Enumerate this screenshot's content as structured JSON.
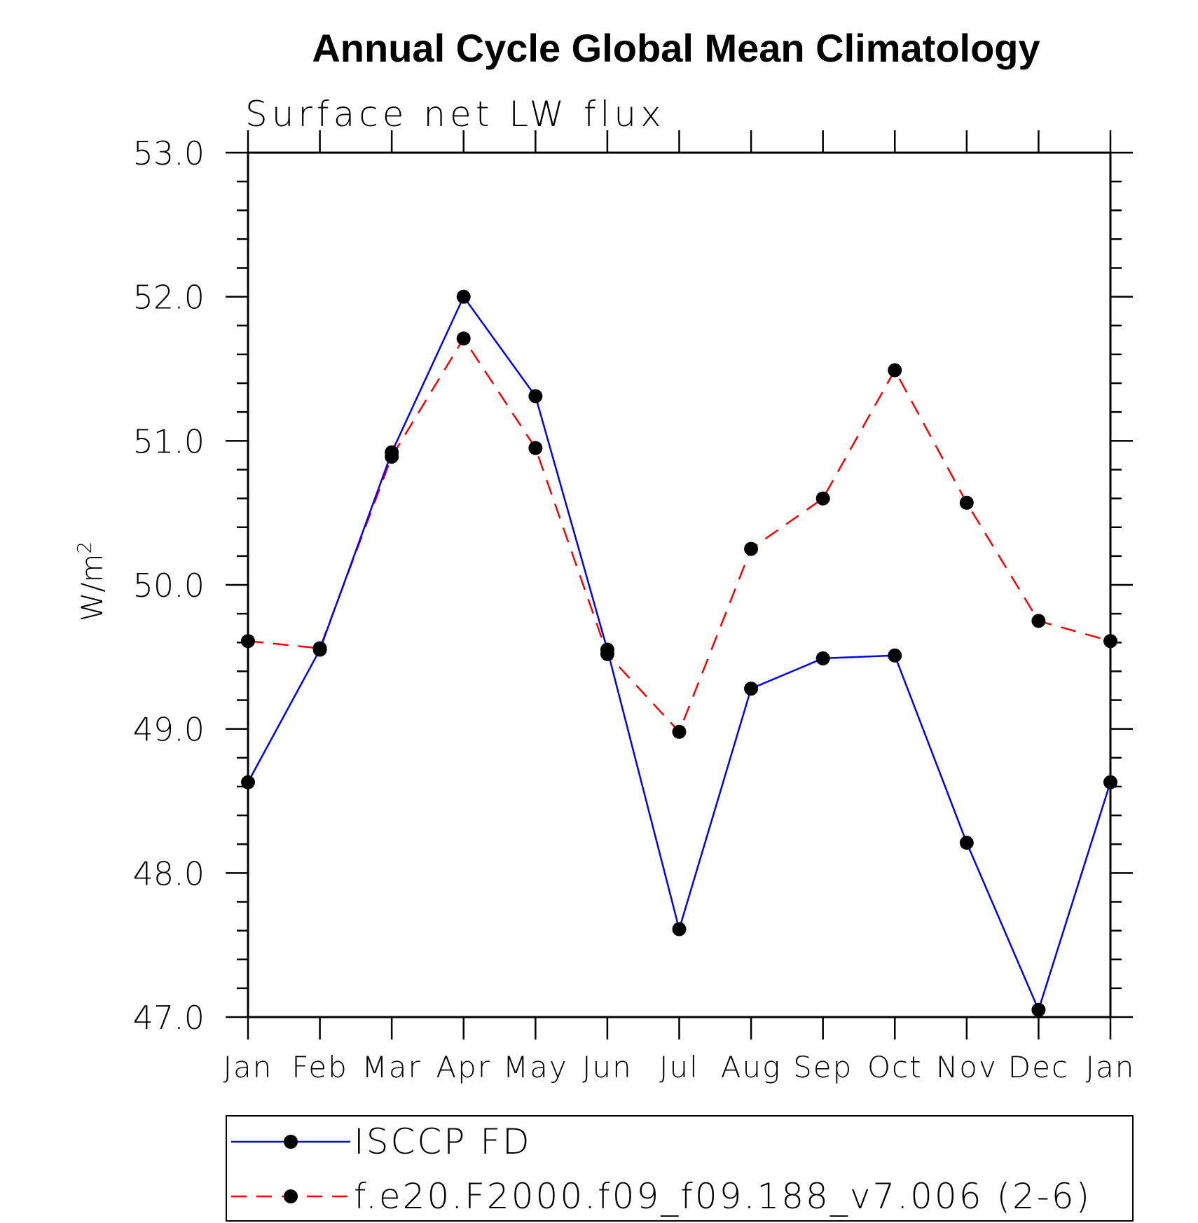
{
  "chart_data": {
    "type": "line",
    "title": "Annual Cycle Global Mean Climatology",
    "subtitle": "Surface net LW flux",
    "ylabel": "W/m",
    "ylabel_superscript": "2",
    "xlabel": "",
    "categories": [
      "Jan",
      "Feb",
      "Mar",
      "Apr",
      "May",
      "Jun",
      "Jul",
      "Aug",
      "Sep",
      "Oct",
      "Nov",
      "Dec",
      "Jan"
    ],
    "ylim": [
      47.0,
      53.0
    ],
    "yticks": [
      "47.0",
      "48.0",
      "49.0",
      "50.0",
      "51.0",
      "52.0",
      "53.0"
    ],
    "grid": false,
    "legend_placement": "bottom",
    "series": [
      {
        "name": "ISCCP FD",
        "color": "#0000ff",
        "dash": "solid",
        "marker": "filled-circle",
        "values": [
          48.63,
          49.55,
          50.92,
          52.0,
          51.31,
          49.55,
          47.61,
          49.28,
          49.49,
          49.51,
          48.21,
          47.05,
          48.63
        ]
      },
      {
        "name": "f.e20.F2000.f09_f09.188_v7.006 (2-6)",
        "color": "#ff0000",
        "dash": "dashed",
        "marker": "filled-circle",
        "values": [
          49.61,
          49.56,
          50.89,
          51.71,
          50.95,
          49.52,
          48.98,
          50.25,
          50.6,
          51.49,
          50.57,
          49.75,
          49.61
        ]
      }
    ]
  }
}
